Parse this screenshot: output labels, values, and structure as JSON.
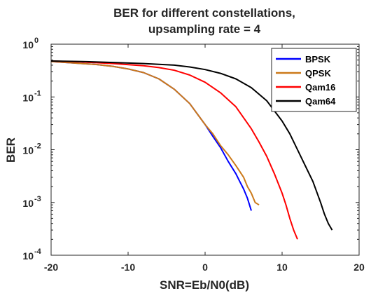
{
  "chart_data": {
    "type": "line",
    "title": [
      "BER for different constellations,",
      "upsampling rate = 4"
    ],
    "xlabel": "SNR=Eb/N0(dB)",
    "ylabel": "BER",
    "xlim": [
      -20,
      20
    ],
    "ylim": [
      0.0001,
      1
    ],
    "yscale": "log",
    "grid": false,
    "legend_position": "top-right",
    "x_ticks": [
      -20,
      -10,
      0,
      10,
      20
    ],
    "x_tick_labels": [
      "-20",
      "-10",
      "0",
      "10",
      "20"
    ],
    "y_ticks": [
      0.0001,
      0.001,
      0.01,
      0.1,
      1
    ],
    "y_tick_labels": [
      {
        "base": "10",
        "exp": "-4"
      },
      {
        "base": "10",
        "exp": "-3"
      },
      {
        "base": "10",
        "exp": "-2"
      },
      {
        "base": "10",
        "exp": "-1"
      },
      {
        "base": "10",
        "exp": "0"
      }
    ],
    "series": [
      {
        "name": "BPSK",
        "color": "#0000ff",
        "x": [
          -20,
          -18,
          -16,
          -14,
          -12,
          -10,
          -8,
          -6,
          -4,
          -2,
          0,
          1,
          2,
          3,
          4,
          4.5,
          5,
          5.5,
          6
        ],
        "y": [
          0.47,
          0.45,
          0.43,
          0.41,
          0.38,
          0.34,
          0.29,
          0.22,
          0.14,
          0.075,
          0.03,
          0.018,
          0.011,
          0.006,
          0.0035,
          0.0025,
          0.0018,
          0.0012,
          0.0007
        ]
      },
      {
        "name": "QPSK",
        "color": "#cc7a1a",
        "x": [
          -20,
          -18,
          -16,
          -14,
          -12,
          -10,
          -8,
          -6,
          -4,
          -2,
          0,
          1,
          2,
          3,
          4,
          5,
          5.5,
          6,
          6.5,
          7
        ],
        "y": [
          0.47,
          0.45,
          0.43,
          0.41,
          0.38,
          0.34,
          0.29,
          0.22,
          0.14,
          0.075,
          0.03,
          0.02,
          0.012,
          0.008,
          0.005,
          0.003,
          0.002,
          0.0015,
          0.001,
          0.0009
        ]
      },
      {
        "name": "Qam16",
        "color": "#ff0000",
        "x": [
          -20,
          -16,
          -12,
          -8,
          -6,
          -4,
          -2,
          0,
          2,
          4,
          6,
          7,
          8,
          9,
          10,
          10.5,
          11,
          11.5,
          12
        ],
        "y": [
          0.48,
          0.46,
          0.43,
          0.39,
          0.36,
          0.32,
          0.26,
          0.19,
          0.12,
          0.065,
          0.025,
          0.014,
          0.0075,
          0.0035,
          0.0015,
          0.0009,
          0.0005,
          0.0003,
          0.0002
        ]
      },
      {
        "name": "Qam64",
        "color": "#000000",
        "x": [
          -20,
          -16,
          -12,
          -8,
          -4,
          -2,
          0,
          2,
          4,
          6,
          8,
          10,
          11,
          12,
          13,
          14,
          15,
          15.5,
          16,
          16.5
        ],
        "y": [
          0.48,
          0.47,
          0.45,
          0.43,
          0.4,
          0.37,
          0.33,
          0.28,
          0.22,
          0.15,
          0.085,
          0.035,
          0.02,
          0.01,
          0.005,
          0.0025,
          0.001,
          0.0006,
          0.0004,
          0.0003
        ]
      }
    ]
  }
}
